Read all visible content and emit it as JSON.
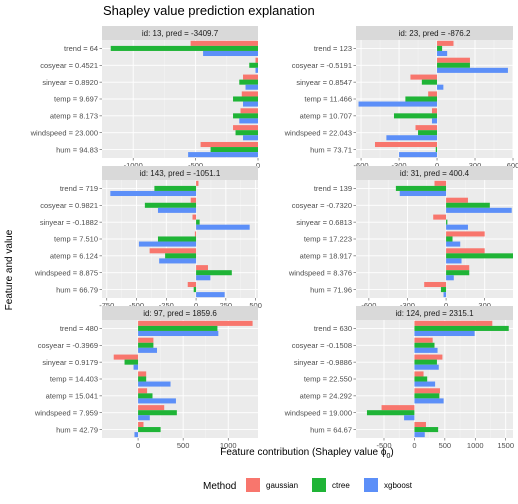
{
  "plot": {
    "title": "Shapley value prediction explanation",
    "xlabel": "Feature contribution (Shapley value ϕ",
    "xlabel_subscript": "0",
    "ylabel": "Feature and value",
    "panel_background": "#ebebeb",
    "strip_background": "#d9d9d9",
    "grid_color": "#ffffff"
  },
  "legend": {
    "title": "Method",
    "position": "bottom",
    "items": [
      {
        "name": "gaussian",
        "color": "#f8766d"
      },
      {
        "name": "ctree",
        "color": "#1fb436"
      },
      {
        "name": "xgboost",
        "color": "#5c8ff8"
      }
    ]
  },
  "chart_data": [
    {
      "type": "bar",
      "orientation": "horizontal",
      "strip": "id: 13, pred = -3409.7",
      "features": [
        "trend = 64",
        "cosyear = 0.4521",
        "sinyear = 0.8920",
        "temp = 9.697",
        "atemp = 8.173",
        "windspeed = 23.000",
        "hum = 94.83"
      ],
      "series": [
        {
          "name": "gaussian",
          "values": [
            -540,
            -20,
            -120,
            -130,
            -140,
            -200,
            -460
          ]
        },
        {
          "name": "ctree",
          "values": [
            -1180,
            -70,
            -150,
            -200,
            -200,
            -180,
            -380
          ]
        },
        {
          "name": "xgboost",
          "values": [
            -440,
            -20,
            -100,
            -120,
            -150,
            -120,
            -560
          ]
        }
      ],
      "xlim": [
        -1250,
        0
      ],
      "xticks": [
        -1000,
        -500,
        0
      ],
      "xtick_labels": [
        "-1000",
        "-500",
        "0"
      ]
    },
    {
      "type": "bar",
      "orientation": "horizontal",
      "strip": "id: 23, pred =  -876.2",
      "features": [
        "trend = 123",
        "cosyear = -0.5191",
        "sinyear = 0.8547",
        "temp = 11.466",
        "atemp = 10.707",
        "windspeed = 22.043",
        "hum = 73.71"
      ],
      "series": [
        {
          "name": "gaussian",
          "values": [
            130,
            260,
            -210,
            -70,
            -40,
            -170,
            -490
          ]
        },
        {
          "name": "ctree",
          "values": [
            40,
            260,
            -120,
            -250,
            -340,
            -150,
            -10
          ]
        },
        {
          "name": "xgboost",
          "values": [
            80,
            560,
            50,
            -620,
            -40,
            -400,
            -300
          ]
        }
      ],
      "xlim": [
        -640,
        600
      ],
      "xticks": [
        -600,
        -300,
        0,
        300,
        600
      ],
      "xtick_labels": [
        "-600",
        "-300",
        "0",
        "300",
        "600"
      ]
    },
    {
      "type": "bar",
      "orientation": "horizontal",
      "strip": "id: 143, pred = -1051.1",
      "features": [
        "trend = 719",
        "cosyear = 0.9821",
        "sinyear = -0.1882",
        "temp = 7.510",
        "atemp = 6.124",
        "windspeed = 8.875",
        "hum = 66.79"
      ],
      "series": [
        {
          "name": "gaussian",
          "values": [
            20,
            -45,
            -30,
            -10,
            -390,
            100,
            -70
          ]
        },
        {
          "name": "ctree",
          "values": [
            -350,
            -430,
            30,
            -320,
            -260,
            300,
            -20
          ]
        },
        {
          "name": "xgboost",
          "values": [
            -720,
            -320,
            450,
            -480,
            -310,
            120,
            240
          ]
        }
      ],
      "xlim": [
        -790,
        520
      ],
      "xticks": [
        -750,
        -500,
        -250,
        0,
        250,
        500
      ],
      "xtick_labels": [
        "-750",
        "-500",
        "-250",
        "0",
        "250",
        "500"
      ]
    },
    {
      "type": "bar",
      "orientation": "horizontal",
      "strip": "id: 31, pred =  400.4",
      "features": [
        "trend = 139",
        "cosyear = -0.7320",
        "sinyear = 0.6813",
        "temp = 17.223",
        "atemp = 18.917",
        "windspeed = 8.376",
        "hum = 71.96"
      ],
      "series": [
        {
          "name": "gaussian",
          "values": [
            -90,
            170,
            -100,
            300,
            300,
            180,
            -170
          ]
        },
        {
          "name": "ctree",
          "values": [
            -390,
            340,
            10,
            50,
            520,
            180,
            -40
          ]
        },
        {
          "name": "xgboost",
          "values": [
            -360,
            510,
            170,
            110,
            120,
            60,
            -20
          ]
        }
      ],
      "xlim": [
        -700,
        520
      ],
      "xticks": [
        -600,
        -300,
        0,
        300
      ],
      "xtick_labels": [
        "-600",
        "-300",
        "0",
        "300"
      ]
    },
    {
      "type": "bar",
      "orientation": "horizontal",
      "strip": "id: 97, pred =  1859.6",
      "features": [
        "trend = 480",
        "cosyear = -0.3969",
        "sinyear = 0.9179",
        "temp = 14.403",
        "atemp = 15.041",
        "windspeed = 7.959",
        "hum = 42.79"
      ],
      "series": [
        {
          "name": "gaussian",
          "values": [
            1270,
            170,
            -270,
            90,
            100,
            290,
            60
          ]
        },
        {
          "name": "ctree",
          "values": [
            880,
            170,
            -150,
            90,
            160,
            430,
            250
          ]
        },
        {
          "name": "xgboost",
          "values": [
            890,
            210,
            -50,
            360,
            420,
            130,
            -40
          ]
        }
      ],
      "xlim": [
        -400,
        1330
      ],
      "xticks": [
        0,
        500,
        1000
      ],
      "xtick_labels": [
        "0",
        "500",
        "1000"
      ]
    },
    {
      "type": "bar",
      "orientation": "horizontal",
      "strip": "id: 124, pred =  2315.1",
      "features": [
        "trend = 630",
        "cosyear = -0.1508",
        "sinyear = -0.9886",
        "temp = 22.550",
        "atemp = 24.292",
        "windspeed = 19.000",
        "hum = 64.67"
      ],
      "series": [
        {
          "name": "gaussian",
          "values": [
            1280,
            300,
            460,
            150,
            420,
            -540,
            190
          ]
        },
        {
          "name": "ctree",
          "values": [
            1550,
            330,
            370,
            210,
            410,
            -780,
            390
          ]
        },
        {
          "name": "xgboost",
          "values": [
            990,
            380,
            400,
            340,
            480,
            -170,
            170
          ]
        }
      ],
      "xlim": [
        -960,
        1620
      ],
      "xticks": [
        -500,
        0,
        500,
        1000,
        1500
      ],
      "xtick_labels": [
        "-500",
        "0",
        "500",
        "1000",
        "1500"
      ]
    }
  ]
}
